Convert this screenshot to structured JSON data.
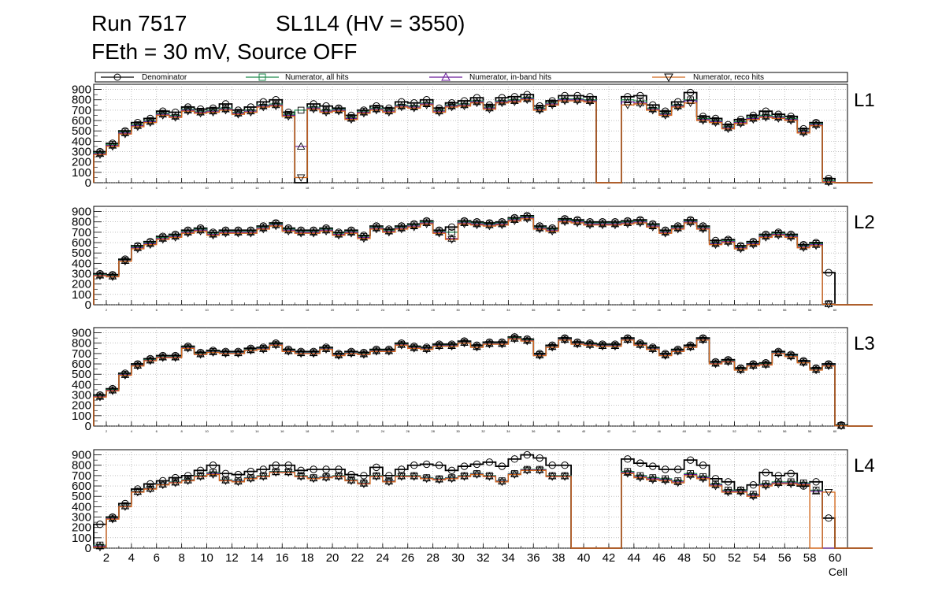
{
  "title": {
    "run": "Run 7517",
    "chamber": "SL1L4 (HV = 3550)",
    "settings": "FEth = 30 mV, Source OFF"
  },
  "legend": {
    "denominator": "Denominator",
    "num_all": "Numerator, all hits",
    "num_inband": "Numerator, in-band hits",
    "num_reco": "Numerator, reco hits"
  },
  "colors": {
    "denominator": "#000000",
    "num_all": "#1e8a4c",
    "num_inband": "#6a1b9a",
    "num_reco": "#d2691e",
    "grid": "#9a9a9a"
  },
  "chart_data": {
    "type": "line",
    "style": "step",
    "xlabel": "Cell",
    "x_range": [
      1,
      61
    ],
    "x_ticks": [
      2,
      4,
      6,
      8,
      10,
      12,
      14,
      16,
      18,
      20,
      22,
      24,
      26,
      28,
      30,
      32,
      34,
      36,
      38,
      40,
      42,
      44,
      46,
      48,
      50,
      52,
      54,
      56,
      58,
      60
    ],
    "y_ticks": [
      0,
      100,
      200,
      300,
      400,
      500,
      600,
      700,
      800,
      900
    ],
    "ylim": [
      0,
      950
    ],
    "panels": [
      {
        "label": "L1",
        "denominator": [
          300,
          380,
          500,
          580,
          620,
          690,
          680,
          730,
          710,
          720,
          760,
          700,
          730,
          780,
          800,
          680,
          0,
          760,
          740,
          720,
          650,
          700,
          740,
          720,
          780,
          770,
          800,
          720,
          770,
          790,
          820,
          750,
          820,
          830,
          850,
          740,
          790,
          840,
          840,
          830,
          0,
          0,
          830,
          840,
          750,
          690,
          780,
          870,
          640,
          620,
          560,
          610,
          650,
          690,
          660,
          640,
          520,
          580,
          40,
          0,
          0,
          0
        ],
        "num_all": [
          290,
          370,
          490,
          560,
          600,
          670,
          650,
          710,
          690,
          700,
          720,
          680,
          700,
          750,
          760,
          660,
          700,
          730,
          700,
          710,
          630,
          690,
          720,
          700,
          750,
          740,
          770,
          700,
          750,
          760,
          790,
          730,
          790,
          800,
          820,
          720,
          770,
          810,
          810,
          800,
          0,
          0,
          800,
          790,
          720,
          670,
          750,
          800,
          620,
          600,
          540,
          590,
          630,
          650,
          640,
          620,
          500,
          570,
          20,
          0,
          0,
          0
        ],
        "num_inband": [
          280,
          360,
          480,
          550,
          590,
          660,
          640,
          700,
          680,
          690,
          710,
          670,
          690,
          740,
          750,
          650,
          350,
          720,
          690,
          700,
          620,
          680,
          710,
          690,
          740,
          730,
          760,
          690,
          740,
          750,
          780,
          720,
          780,
          790,
          810,
          710,
          760,
          800,
          800,
          790,
          0,
          0,
          780,
          770,
          710,
          660,
          740,
          790,
          610,
          590,
          530,
          580,
          620,
          640,
          630,
          610,
          490,
          560,
          10,
          0,
          0,
          0
        ],
        "num_reco": [
          270,
          350,
          470,
          540,
          580,
          650,
          630,
          690,
          670,
          680,
          700,
          660,
          680,
          730,
          740,
          640,
          50,
          710,
          680,
          690,
          610,
          670,
          700,
          680,
          730,
          720,
          750,
          680,
          730,
          740,
          770,
          710,
          770,
          780,
          800,
          700,
          750,
          790,
          790,
          780,
          0,
          0,
          750,
          760,
          700,
          650,
          730,
          770,
          600,
          580,
          520,
          570,
          610,
          630,
          620,
          600,
          480,
          550,
          5,
          0,
          0,
          0
        ]
      },
      {
        "label": "L2",
        "denominator": [
          300,
          290,
          440,
          570,
          610,
          660,
          680,
          720,
          740,
          700,
          720,
          720,
          720,
          760,
          790,
          740,
          720,
          720,
          740,
          700,
          720,
          670,
          760,
          730,
          760,
          780,
          810,
          720,
          750,
          810,
          800,
          790,
          800,
          840,
          860,
          760,
          740,
          830,
          820,
          800,
          800,
          800,
          810,
          820,
          780,
          720,
          760,
          820,
          760,
          620,
          630,
          570,
          610,
          680,
          700,
          680,
          580,
          600,
          310,
          0,
          0,
          0
        ],
        "num_all": [
          290,
          280,
          430,
          560,
          600,
          650,
          670,
          710,
          730,
          690,
          710,
          710,
          710,
          750,
          780,
          730,
          710,
          710,
          730,
          690,
          710,
          660,
          750,
          720,
          750,
          770,
          800,
          710,
          700,
          800,
          790,
          780,
          790,
          830,
          850,
          750,
          730,
          820,
          810,
          790,
          790,
          790,
          800,
          810,
          770,
          710,
          750,
          810,
          750,
          600,
          620,
          560,
          600,
          670,
          690,
          670,
          570,
          590,
          10,
          0,
          0,
          0
        ],
        "num_inband": [
          285,
          275,
          425,
          550,
          590,
          640,
          660,
          700,
          720,
          680,
          700,
          700,
          700,
          740,
          770,
          720,
          700,
          700,
          720,
          680,
          700,
          650,
          740,
          710,
          740,
          760,
          790,
          700,
          640,
          790,
          780,
          770,
          780,
          820,
          840,
          740,
          720,
          810,
          800,
          780,
          780,
          780,
          790,
          800,
          760,
          700,
          740,
          800,
          740,
          590,
          610,
          550,
          590,
          660,
          680,
          660,
          560,
          580,
          8,
          0,
          0,
          0
        ],
        "num_reco": [
          280,
          270,
          420,
          540,
          580,
          630,
          650,
          690,
          710,
          670,
          690,
          690,
          690,
          730,
          760,
          710,
          690,
          690,
          710,
          670,
          690,
          640,
          730,
          700,
          730,
          750,
          780,
          690,
          630,
          780,
          770,
          760,
          770,
          810,
          830,
          730,
          710,
          800,
          790,
          770,
          770,
          770,
          780,
          790,
          750,
          690,
          730,
          790,
          730,
          580,
          600,
          540,
          580,
          650,
          670,
          650,
          550,
          570,
          5,
          0,
          0,
          0
        ]
      },
      {
        "label": "L3",
        "denominator": [
          300,
          360,
          510,
          600,
          650,
          680,
          680,
          770,
          710,
          730,
          720,
          720,
          750,
          760,
          800,
          740,
          720,
          720,
          760,
          700,
          720,
          710,
          740,
          740,
          800,
          770,
          760,
          790,
          790,
          820,
          780,
          810,
          810,
          860,
          840,
          700,
          780,
          850,
          810,
          800,
          790,
          790,
          850,
          800,
          760,
          700,
          740,
          780,
          850,
          620,
          640,
          560,
          600,
          610,
          720,
          690,
          630,
          560,
          600,
          10,
          0,
          0
        ],
        "num_all": [
          290,
          350,
          500,
          590,
          640,
          670,
          670,
          760,
          700,
          720,
          710,
          710,
          740,
          750,
          790,
          730,
          710,
          710,
          750,
          690,
          710,
          700,
          730,
          730,
          790,
          760,
          750,
          780,
          780,
          810,
          770,
          800,
          800,
          850,
          830,
          690,
          770,
          840,
          800,
          790,
          780,
          780,
          840,
          790,
          750,
          690,
          730,
          770,
          840,
          610,
          630,
          550,
          590,
          600,
          710,
          680,
          620,
          550,
          590,
          5,
          0,
          0
        ],
        "num_inband": [
          285,
          345,
          495,
          585,
          635,
          665,
          665,
          755,
          695,
          715,
          705,
          705,
          735,
          745,
          785,
          725,
          705,
          705,
          745,
          685,
          705,
          695,
          725,
          725,
          785,
          755,
          745,
          775,
          775,
          805,
          765,
          795,
          795,
          845,
          825,
          685,
          765,
          835,
          795,
          785,
          775,
          775,
          835,
          785,
          745,
          685,
          725,
          765,
          835,
          605,
          625,
          545,
          585,
          595,
          705,
          675,
          615,
          545,
          585,
          3,
          0,
          0
        ],
        "num_reco": [
          280,
          340,
          490,
          580,
          630,
          660,
          660,
          750,
          690,
          710,
          700,
          700,
          730,
          740,
          780,
          720,
          700,
          700,
          740,
          680,
          700,
          690,
          720,
          720,
          780,
          750,
          740,
          770,
          770,
          800,
          760,
          790,
          790,
          840,
          820,
          680,
          760,
          830,
          790,
          780,
          770,
          770,
          830,
          780,
          740,
          680,
          720,
          760,
          830,
          600,
          620,
          540,
          580,
          590,
          700,
          670,
          610,
          540,
          580,
          2,
          0,
          0
        ]
      },
      {
        "label": "L4",
        "denominator": [
          230,
          300,
          430,
          570,
          620,
          650,
          680,
          700,
          750,
          800,
          720,
          710,
          740,
          760,
          800,
          800,
          750,
          760,
          760,
          760,
          710,
          700,
          780,
          700,
          760,
          800,
          810,
          800,
          750,
          790,
          810,
          830,
          790,
          860,
          900,
          870,
          800,
          800,
          0,
          0,
          0,
          0,
          860,
          820,
          790,
          760,
          760,
          850,
          800,
          670,
          640,
          560,
          610,
          730,
          700,
          720,
          600,
          640,
          290,
          0,
          0,
          0
        ],
        "num_all": [
          30,
          290,
          410,
          550,
          580,
          620,
          640,
          660,
          700,
          730,
          660,
          650,
          680,
          700,
          740,
          740,
          700,
          680,
          690,
          700,
          660,
          630,
          700,
          650,
          700,
          700,
          680,
          670,
          680,
          700,
          720,
          700,
          650,
          720,
          760,
          760,
          700,
          700,
          0,
          0,
          0,
          0,
          740,
          700,
          680,
          670,
          650,
          720,
          690,
          620,
          560,
          560,
          520,
          620,
          640,
          640,
          630,
          560,
          0,
          0,
          0,
          0
        ],
        "num_inband": [
          20,
          285,
          405,
          545,
          575,
          615,
          635,
          655,
          695,
          720,
          655,
          645,
          675,
          695,
          735,
          735,
          695,
          675,
          685,
          695,
          655,
          625,
          695,
          645,
          695,
          695,
          675,
          665,
          675,
          695,
          715,
          695,
          645,
          715,
          755,
          755,
          695,
          695,
          0,
          0,
          0,
          0,
          730,
          690,
          670,
          660,
          640,
          710,
          680,
          610,
          550,
          550,
          510,
          610,
          630,
          630,
          620,
          550,
          0,
          0,
          0,
          0
        ],
        "num_reco": [
          10,
          280,
          400,
          540,
          570,
          610,
          630,
          650,
          690,
          710,
          650,
          640,
          670,
          690,
          730,
          730,
          690,
          670,
          680,
          690,
          650,
          620,
          690,
          640,
          690,
          690,
          670,
          660,
          670,
          690,
          710,
          690,
          640,
          710,
          750,
          750,
          690,
          690,
          0,
          0,
          0,
          0,
          720,
          680,
          660,
          650,
          630,
          700,
          670,
          600,
          540,
          540,
          500,
          600,
          620,
          620,
          610,
          0,
          540,
          0,
          0,
          0
        ]
      }
    ]
  }
}
